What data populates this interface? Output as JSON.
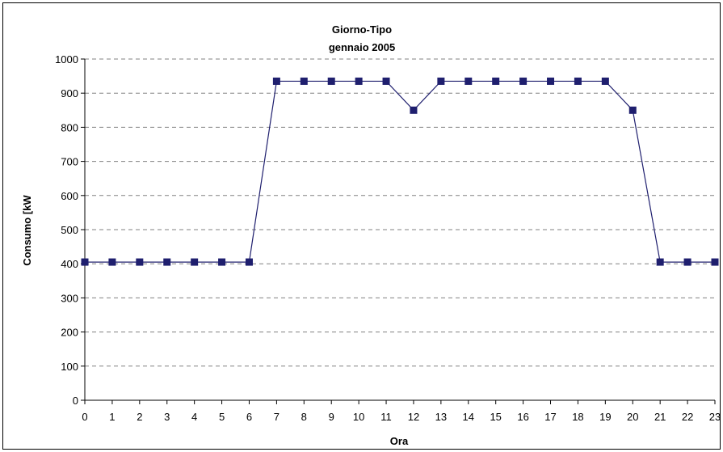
{
  "chart_data": {
    "type": "line",
    "title": "Giorno-Tipo",
    "subtitle": "gennaio 2005",
    "xlabel": "Ora",
    "ylabel": "Consumo [kW",
    "x": [
      0,
      1,
      2,
      3,
      4,
      5,
      6,
      7,
      8,
      9,
      10,
      11,
      12,
      13,
      14,
      15,
      16,
      17,
      18,
      19,
      20,
      21,
      22,
      23
    ],
    "series": [
      {
        "values": [
          405,
          405,
          405,
          405,
          405,
          405,
          405,
          935,
          935,
          935,
          935,
          935,
          850,
          935,
          935,
          935,
          935,
          935,
          935,
          935,
          850,
          405,
          405,
          405
        ]
      }
    ],
    "ylim": [
      0,
      1000
    ],
    "yticks": [
      0,
      100,
      200,
      300,
      400,
      500,
      600,
      700,
      800,
      900,
      1000
    ],
    "xlim": [
      0,
      23
    ],
    "grid": "horizontal dashed",
    "legend": "none",
    "colors": {
      "line": "#1f1f6e",
      "marker": "#1f1f6e",
      "grid": "#808080",
      "axis": "#000000"
    }
  }
}
